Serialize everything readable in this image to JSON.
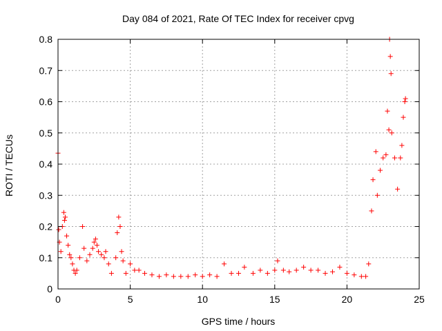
{
  "chart_data": {
    "type": "scatter",
    "title": "Day 084 of 2021, Rate Of TEC Index for receiver cpvg",
    "xlabel": "GPS time / hours",
    "ylabel": "ROTI / TECUs",
    "xlim": [
      0,
      25
    ],
    "ylim": [
      0,
      0.8
    ],
    "x_ticks": [
      "0",
      "5",
      "10",
      "15",
      "20",
      "25"
    ],
    "y_ticks": [
      "0",
      "0.1",
      "0.2",
      "0.3",
      "0.4",
      "0.5",
      "0.6",
      "0.7",
      "0.8"
    ],
    "grid": true,
    "marker": "plus",
    "color": "#ff0000",
    "points": [
      [
        0.0,
        0.435
      ],
      [
        0.05,
        0.19
      ],
      [
        0.1,
        0.15
      ],
      [
        0.2,
        0.12
      ],
      [
        0.3,
        0.2
      ],
      [
        0.4,
        0.245
      ],
      [
        0.45,
        0.22
      ],
      [
        0.5,
        0.23
      ],
      [
        0.6,
        0.17
      ],
      [
        0.7,
        0.14
      ],
      [
        0.8,
        0.11
      ],
      [
        0.9,
        0.1
      ],
      [
        1.0,
        0.08
      ],
      [
        1.1,
        0.06
      ],
      [
        1.2,
        0.05
      ],
      [
        1.3,
        0.06
      ],
      [
        1.5,
        0.1
      ],
      [
        1.7,
        0.2
      ],
      [
        1.8,
        0.13
      ],
      [
        2.0,
        0.09
      ],
      [
        2.2,
        0.11
      ],
      [
        2.4,
        0.13
      ],
      [
        2.5,
        0.15
      ],
      [
        2.6,
        0.16
      ],
      [
        2.7,
        0.14
      ],
      [
        2.8,
        0.12
      ],
      [
        3.0,
        0.11
      ],
      [
        3.2,
        0.1
      ],
      [
        3.3,
        0.12
      ],
      [
        3.5,
        0.08
      ],
      [
        3.7,
        0.05
      ],
      [
        4.0,
        0.1
      ],
      [
        4.1,
        0.18
      ],
      [
        4.2,
        0.23
      ],
      [
        4.3,
        0.2
      ],
      [
        4.4,
        0.12
      ],
      [
        4.5,
        0.09
      ],
      [
        4.7,
        0.05
      ],
      [
        5.0,
        0.08
      ],
      [
        5.3,
        0.06
      ],
      [
        5.6,
        0.06
      ],
      [
        6.0,
        0.05
      ],
      [
        6.5,
        0.045
      ],
      [
        7.0,
        0.04
      ],
      [
        7.5,
        0.045
      ],
      [
        8.0,
        0.04
      ],
      [
        8.5,
        0.04
      ],
      [
        9.0,
        0.04
      ],
      [
        9.5,
        0.045
      ],
      [
        10.0,
        0.04
      ],
      [
        10.5,
        0.045
      ],
      [
        11.0,
        0.04
      ],
      [
        11.5,
        0.08
      ],
      [
        12.0,
        0.05
      ],
      [
        12.5,
        0.05
      ],
      [
        12.9,
        0.07
      ],
      [
        13.5,
        0.05
      ],
      [
        14.0,
        0.06
      ],
      [
        14.5,
        0.05
      ],
      [
        15.0,
        0.06
      ],
      [
        15.2,
        0.09
      ],
      [
        15.6,
        0.06
      ],
      [
        16.0,
        0.055
      ],
      [
        16.5,
        0.06
      ],
      [
        17.0,
        0.07
      ],
      [
        17.5,
        0.06
      ],
      [
        18.0,
        0.06
      ],
      [
        18.5,
        0.05
      ],
      [
        19.0,
        0.055
      ],
      [
        19.5,
        0.07
      ],
      [
        20.0,
        0.05
      ],
      [
        20.5,
        0.045
      ],
      [
        21.0,
        0.04
      ],
      [
        21.3,
        0.04
      ],
      [
        21.5,
        0.08
      ],
      [
        21.7,
        0.25
      ],
      [
        21.8,
        0.35
      ],
      [
        22.0,
        0.44
      ],
      [
        22.1,
        0.3
      ],
      [
        22.3,
        0.38
      ],
      [
        22.5,
        0.42
      ],
      [
        22.7,
        0.43
      ],
      [
        22.8,
        0.57
      ],
      [
        22.9,
        0.51
      ],
      [
        22.95,
        0.8
      ],
      [
        23.0,
        0.745
      ],
      [
        23.05,
        0.69
      ],
      [
        23.1,
        0.5
      ],
      [
        23.3,
        0.42
      ],
      [
        23.5,
        0.32
      ],
      [
        23.7,
        0.42
      ],
      [
        23.8,
        0.46
      ],
      [
        23.9,
        0.55
      ],
      [
        24.0,
        0.6
      ],
      [
        24.05,
        0.61
      ]
    ]
  }
}
